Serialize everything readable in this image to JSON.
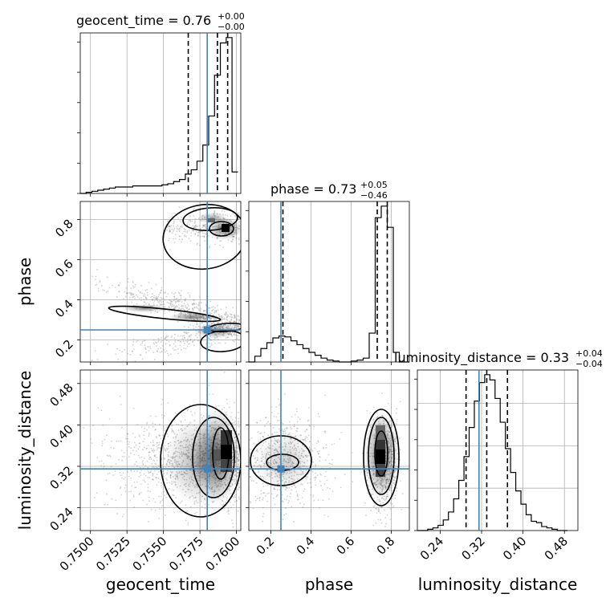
{
  "chart_data": {
    "type": "corner",
    "parameters": [
      "geocent_time",
      "phase",
      "luminosity_distance"
    ],
    "truths": {
      "geocent_time": 0.758,
      "phase": 0.25,
      "luminosity_distance": 0.315
    },
    "colors": {
      "truth": "#4682b4",
      "hist": "#000000",
      "grid": "#b0b0b0",
      "scatter": "#7f7f7f"
    },
    "grid": true,
    "titles": {
      "geocent_time": {
        "label": "geocent_time = 0.76",
        "plus": "+0.00",
        "minus": "−0.00"
      },
      "phase": {
        "label": "phase = 0.73",
        "plus": "+0.05",
        "minus": "−0.46"
      },
      "luminosity_distance": {
        "label": "luminosity_distance = 0.33",
        "plus": "+0.04",
        "minus": "−0.04"
      }
    },
    "axis_labels": {
      "x": [
        "geocent_time",
        "phase",
        "luminosity_distance"
      ],
      "y": [
        "phase",
        "luminosity_distance"
      ]
    },
    "ranges": {
      "geocent_time": [
        0.7493,
        0.7603
      ],
      "phase": [
        0.09,
        0.89
      ],
      "luminosity_distance": [
        0.196,
        0.506
      ]
    },
    "ticks": {
      "geocent_time": [
        "0.7500",
        "0.7525",
        "0.7550",
        "0.7575",
        "0.7600"
      ],
      "phase": [
        "0.2",
        "0.4",
        "0.6",
        "0.8"
      ],
      "luminosity_distance": [
        "0.24",
        "0.32",
        "0.40",
        "0.48"
      ]
    },
    "quantiles": {
      "geocent_time": [
        0.7567,
        0.7587,
        0.7594
      ],
      "phase": [
        0.26,
        0.73,
        0.78
      ],
      "luminosity_distance": [
        0.29,
        0.33,
        0.37
      ]
    },
    "hist_geocent_time": {
      "bin_edges": [
        0.7493,
        0.7497,
        0.7501,
        0.7505,
        0.7509,
        0.7513,
        0.7517,
        0.7521,
        0.7525,
        0.7529,
        0.7533,
        0.7537,
        0.7541,
        0.7545,
        0.7549,
        0.7553,
        0.7557,
        0.7561,
        0.7565,
        0.7569,
        0.7573,
        0.7577,
        0.7581,
        0.7585,
        0.7589,
        0.7593,
        0.7597,
        0.7601
      ],
      "counts": [
        0,
        1,
        2,
        3,
        4,
        5,
        6,
        6,
        6,
        7,
        7,
        7,
        7,
        7,
        8,
        9,
        11,
        13,
        18,
        22,
        30,
        45,
        72,
        110,
        140,
        145,
        20
      ]
    },
    "hist_phase": {
      "bin_edges": [
        0.09,
        0.12,
        0.15,
        0.18,
        0.21,
        0.24,
        0.27,
        0.3,
        0.33,
        0.36,
        0.39,
        0.42,
        0.45,
        0.48,
        0.51,
        0.54,
        0.57,
        0.6,
        0.63,
        0.66,
        0.69,
        0.72,
        0.75,
        0.78,
        0.81,
        0.84,
        0.87,
        0.89
      ],
      "counts": [
        0,
        6,
        14,
        20,
        25,
        27,
        26,
        22,
        18,
        14,
        10,
        7,
        4,
        2,
        1,
        0,
        0,
        1,
        2,
        4,
        30,
        150,
        162,
        140,
        10,
        0,
        0
      ]
    },
    "hist_luminosity_distance": {
      "bin_edges": [
        0.196,
        0.206,
        0.216,
        0.226,
        0.236,
        0.246,
        0.256,
        0.266,
        0.276,
        0.286,
        0.296,
        0.306,
        0.316,
        0.326,
        0.336,
        0.346,
        0.356,
        0.366,
        0.376,
        0.386,
        0.396,
        0.406,
        0.416,
        0.426,
        0.436,
        0.446,
        0.456,
        0.466,
        0.476,
        0.486
      ],
      "counts": [
        0,
        0,
        1,
        2,
        4,
        8,
        14,
        24,
        38,
        56,
        78,
        98,
        112,
        118,
        114,
        100,
        82,
        62,
        44,
        30,
        20,
        12,
        7,
        6,
        3,
        2,
        1,
        0,
        0
      ]
    }
  }
}
